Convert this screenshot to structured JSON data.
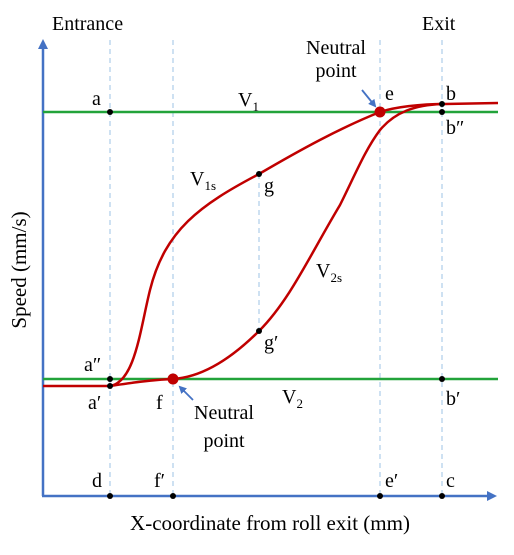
{
  "labels": {
    "entrance": "Entrance",
    "exit": "Exit",
    "neutral_point_top_line1": "Neutral",
    "neutral_point_top_line2": "point",
    "neutral_point_bottom_line1": "Neutral",
    "neutral_point_bottom_line2": "point",
    "y_axis_title": "Speed (mm/s)",
    "x_axis_title": "X-coordinate from roll exit (mm)",
    "v1_main": "V",
    "v1_sub": "1",
    "v1s_main": "V",
    "v1s_sub": "1s",
    "v2_main": "V",
    "v2_sub": "2",
    "v2s_main": "V",
    "v2s_sub": "2s"
  },
  "points": {
    "a": "a",
    "b": "b",
    "b_double_prime": "b″",
    "e": "e",
    "g": "g",
    "g_prime": "g′",
    "a_double_prime": "a″",
    "a_prime": "a′",
    "f": "f",
    "b_prime": "b′",
    "d": "d",
    "f_prime": "f′",
    "e_prime": "e′",
    "c": "c"
  },
  "colors": {
    "axis": "#4472c4",
    "reference_lines": "#22a33a",
    "curves": "#c00000",
    "neutral_point_marker": "#c00000",
    "guide_lines": "#9dc3e6",
    "arrow": "#4472c4",
    "text": "#000000"
  }
}
